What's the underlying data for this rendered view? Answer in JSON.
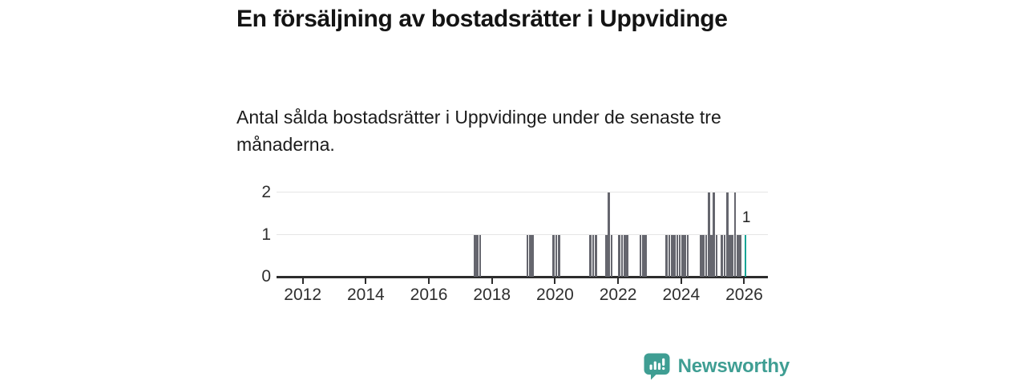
{
  "header": {
    "title": "En försäljning av bostadsrätter i Uppvidinge",
    "subtitle": "Antal sålda bostadsrätter i Uppvidinge under de senaste tre månaderna."
  },
  "chart_data": {
    "type": "bar",
    "title": "En försäljning av bostadsrätter i Uppvidinge",
    "subtitle": "Antal sålda bostadsrätter i Uppvidinge under de senaste tre månaderna.",
    "xlabel": "",
    "ylabel": "",
    "ylim": [
      0,
      2
    ],
    "xlim": [
      2011.17,
      2026.75
    ],
    "y_ticks": [
      0,
      1,
      2
    ],
    "x_ticks": [
      2012,
      2014,
      2016,
      2018,
      2020,
      2022,
      2024,
      2026
    ],
    "grid": "horizontal",
    "legend": "none",
    "bar_color": "#65666e",
    "highlight_color": "#16a496",
    "last_value_label": "1",
    "points": [
      {
        "m": "2017-06",
        "v": 1
      },
      {
        "m": "2017-07",
        "v": 1
      },
      {
        "m": "2017-08",
        "v": 1
      },
      {
        "m": "2019-02",
        "v": 1
      },
      {
        "m": "2019-03",
        "v": 1
      },
      {
        "m": "2019-04",
        "v": 1
      },
      {
        "m": "2019-12",
        "v": 1
      },
      {
        "m": "2020-01",
        "v": 1
      },
      {
        "m": "2020-02",
        "v": 1
      },
      {
        "m": "2021-02",
        "v": 1
      },
      {
        "m": "2021-03",
        "v": 1
      },
      {
        "m": "2021-04",
        "v": 1
      },
      {
        "m": "2021-08",
        "v": 1
      },
      {
        "m": "2021-09",
        "v": 2
      },
      {
        "m": "2021-10",
        "v": 1
      },
      {
        "m": "2022-01",
        "v": 1
      },
      {
        "m": "2022-02",
        "v": 1
      },
      {
        "m": "2022-03",
        "v": 1
      },
      {
        "m": "2022-04",
        "v": 1
      },
      {
        "m": "2022-09",
        "v": 1
      },
      {
        "m": "2022-10",
        "v": 1
      },
      {
        "m": "2022-11",
        "v": 1
      },
      {
        "m": "2023-07",
        "v": 1
      },
      {
        "m": "2023-08",
        "v": 1
      },
      {
        "m": "2023-09",
        "v": 1
      },
      {
        "m": "2023-10",
        "v": 1
      },
      {
        "m": "2023-11",
        "v": 1
      },
      {
        "m": "2023-12",
        "v": 1
      },
      {
        "m": "2024-01",
        "v": 1
      },
      {
        "m": "2024-02",
        "v": 1
      },
      {
        "m": "2024-03",
        "v": 1
      },
      {
        "m": "2024-08",
        "v": 1
      },
      {
        "m": "2024-09",
        "v": 1
      },
      {
        "m": "2024-10",
        "v": 1
      },
      {
        "m": "2024-11",
        "v": 2
      },
      {
        "m": "2024-12",
        "v": 1
      },
      {
        "m": "2025-01",
        "v": 2
      },
      {
        "m": "2025-02",
        "v": 1
      },
      {
        "m": "2025-04",
        "v": 1
      },
      {
        "m": "2025-05",
        "v": 1
      },
      {
        "m": "2025-06",
        "v": 2
      },
      {
        "m": "2025-07",
        "v": 1
      },
      {
        "m": "2025-08",
        "v": 1
      },
      {
        "m": "2025-09",
        "v": 2
      },
      {
        "m": "2025-10",
        "v": 1
      },
      {
        "m": "2025-11",
        "v": 1
      },
      {
        "m": "2026-01",
        "v": 1,
        "highlight": true
      }
    ]
  },
  "footer": {
    "brand": "Newsworthy",
    "brand_color": "#3f9e93"
  }
}
